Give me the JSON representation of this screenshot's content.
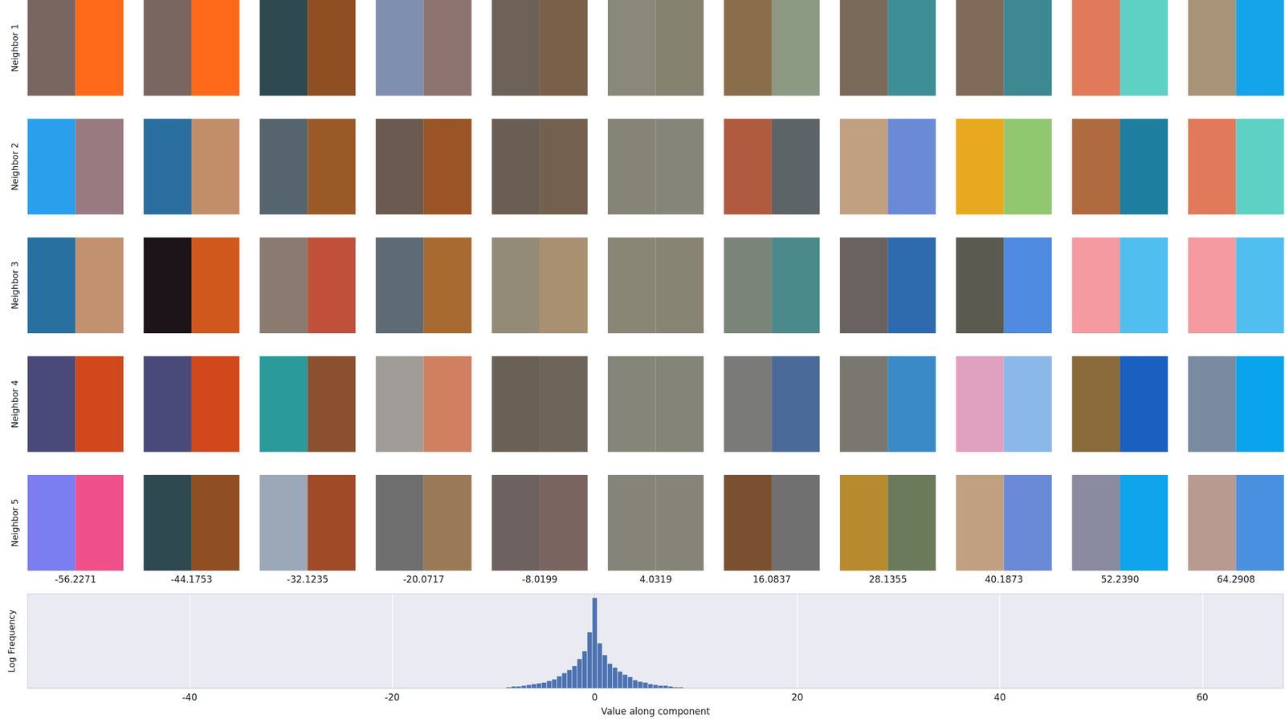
{
  "chart_data": {
    "type": "histogram",
    "bins": [
      -8.75,
      -8.25,
      -7.75,
      -7.25,
      -6.75,
      -6.25,
      -5.75,
      -5.25,
      -4.75,
      -4.25,
      -3.75,
      -3.25,
      -2.75,
      -2.25,
      -1.75,
      -1.25,
      -0.75,
      -0.25,
      0.25,
      0.75,
      1.25,
      1.75,
      2.25,
      2.75,
      3.25,
      3.75,
      4.25,
      4.75,
      5.25,
      5.75,
      6.25,
      6.75,
      7.25,
      7.75,
      8.25,
      8.75
    ],
    "values": [
      0.1,
      0.2,
      0.2,
      0.3,
      0.4,
      0.5,
      0.6,
      0.7,
      0.9,
      1.1,
      1.5,
      1.9,
      2.3,
      2.8,
      3.7,
      4.7,
      7.1,
      11.5,
      5.7,
      4.2,
      3.1,
      2.6,
      2.1,
      1.7,
      1.4,
      1.0,
      0.8,
      0.7,
      0.5,
      0.4,
      0.3,
      0.3,
      0.2,
      0.1,
      0.1
    ],
    "color": "#4c72b0",
    "xlabel": "Value along component",
    "ylabel": "Log Frequency",
    "xlim": [
      -56,
      68
    ],
    "xticks": [
      -40,
      -20,
      0,
      20,
      40,
      60
    ],
    "ylim": [
      0,
      12
    ],
    "grid": true,
    "tick_labels": "x"
  },
  "neighbors": {
    "row_labels": [
      "Neighbor 1",
      "Neighbor 2",
      "Neighbor 3",
      "Neighbor 4",
      "Neighbor 5"
    ],
    "column_values": [
      -56.2271,
      -44.1753,
      -32.1235,
      -20.0717,
      -8.0199,
      4.0319,
      16.0837,
      28.1355,
      40.1873,
      {
        "value": 52.239,
        "label": "52.2390"
      },
      64.2908
    ],
    "patches": [
      [
        [
          "#7a6660",
          "#ff6a1a"
        ],
        [
          "#7a6660",
          "#ff6a1a"
        ],
        [
          "#2e4a50",
          "#8f4f22"
        ],
        [
          "#7f8fb0",
          "#8e7470"
        ],
        [
          "#6e6258",
          "#7a6048"
        ],
        [
          "#8a8878",
          "#85826f"
        ],
        [
          "#8a6e4c",
          "#8c9a84"
        ],
        [
          "#7a6a5a",
          "#3e8e96"
        ],
        [
          "#806a58",
          "#3d8891"
        ],
        [
          "#e07a5a",
          "#5fd0c4"
        ],
        [
          "#a89478",
          "#14a4ea"
        ]
      ],
      [
        [
          "#2aa0ec",
          "#987a80"
        ],
        [
          "#2a6ea0",
          "#c28e6a"
        ],
        [
          "#56646e",
          "#9a5a28"
        ],
        [
          "#6a5a50",
          "#9a5425"
        ],
        [
          "#6a5e54",
          "#74604e"
        ],
        [
          "#868476",
          "#86857a"
        ],
        [
          "#b05a40",
          "#5c6468"
        ],
        [
          "#c0a080",
          "#6a8ad8"
        ],
        [
          "#e8a820",
          "#90c870"
        ],
        [
          "#b06a40",
          "#1e7ea0"
        ],
        [
          "#e07a5a",
          "#5fd0c4"
        ]
      ],
      [
        [
          "#2870a0",
          "#c29270"
        ],
        [
          "#1c1418",
          "#d0581c"
        ],
        [
          "#8a7a70",
          "#c0503a"
        ],
        [
          "#5e6a74",
          "#a86a30"
        ],
        [
          "#948a78",
          "#a89070"
        ],
        [
          "#8a8676",
          "#888474"
        ],
        [
          "#7a8478",
          "#4a8a8a"
        ],
        [
          "#6a6260",
          "#2e6aae"
        ],
        [
          "#5a5a50",
          "#4e8ae0"
        ],
        [
          "#f49aa0",
          "#50bff0"
        ],
        [
          "#f49aa0",
          "#50bff0"
        ]
      ],
      [
        [
          "#4a4a7a",
          "#d0481c"
        ],
        [
          "#4a4a7a",
          "#d0481c"
        ],
        [
          "#2a9a9a",
          "#8a5030"
        ],
        [
          "#a09c98",
          "#d08060"
        ],
        [
          "#6a6056",
          "#6e645a"
        ],
        [
          "#86857a",
          "#858478"
        ],
        [
          "#7a7a78",
          "#4a6a9a"
        ],
        [
          "#7a7670",
          "#3a8ac8"
        ],
        [
          "#e0a0c0",
          "#8ab8e8"
        ],
        [
          "#8a6a3a",
          "#1a60c0"
        ],
        [
          "#7a8aa0",
          "#0aa4ec"
        ]
      ],
      [
        [
          "#7a7ef0",
          "#f0508a"
        ],
        [
          "#2e4a50",
          "#8f4f22"
        ],
        [
          "#9aa8b8",
          "#a04a28"
        ],
        [
          "#6e6e6e",
          "#9a7a56"
        ],
        [
          "#6e6260",
          "#7a6460"
        ],
        [
          "#868478",
          "#868478"
        ],
        [
          "#7a5030",
          "#707070"
        ],
        [
          "#b88a30",
          "#6a7a5a"
        ],
        [
          "#c0a080",
          "#6a8ad8"
        ],
        [
          "#8a8aa0",
          "#10a4ec"
        ],
        [
          "#b89a90",
          "#4a90e0"
        ]
      ]
    ]
  }
}
